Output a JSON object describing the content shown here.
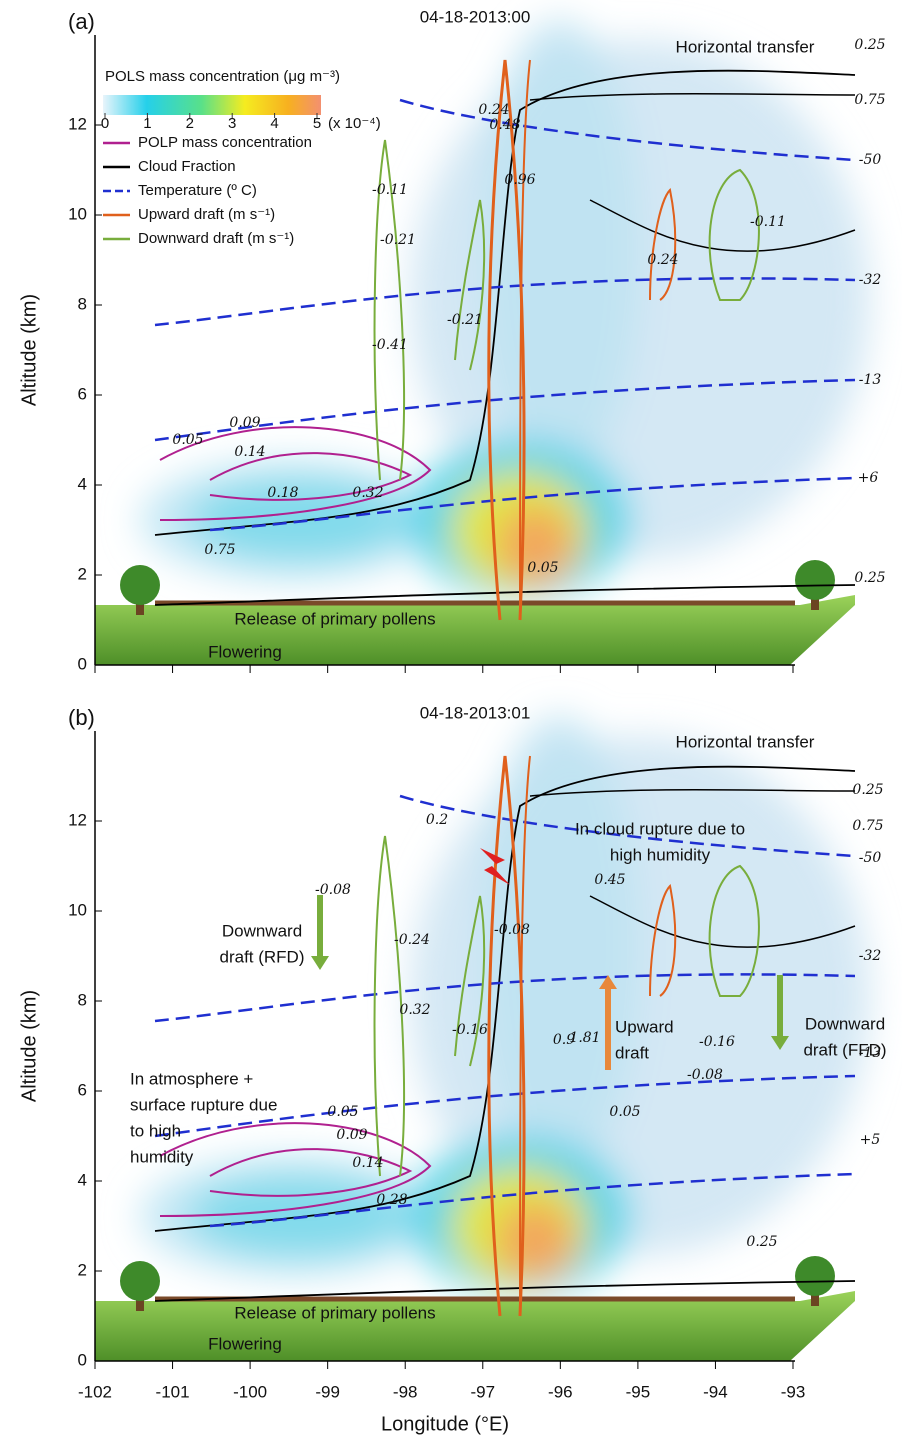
{
  "chart_data": [
    {
      "type": "contour",
      "panel_label": "(a)",
      "title": "04-18-2013:00",
      "ylabel": "Altitude (km)",
      "xlim": [
        -102,
        -92.2
      ],
      "ylim": [
        0,
        14
      ],
      "xticks": [
        -102,
        -101,
        -100,
        -99,
        -98,
        -97,
        -96,
        -95,
        -94,
        -93
      ],
      "yticks": [
        0,
        2,
        4,
        6,
        8,
        10,
        12
      ],
      "colorbar": {
        "title": "POLS mass concentration (μg m⁻³)",
        "ticks": [
          0,
          1,
          2,
          3,
          4,
          5
        ],
        "unit": "(x 10⁻⁴)"
      },
      "legend": [
        {
          "name": "POLP mass concentration",
          "color": "#b0208f"
        },
        {
          "name": "Cloud Fraction",
          "color": "#000000"
        },
        {
          "name": "Temperature (º C)",
          "color": "#1f2fd0"
        },
        {
          "name": "Upward draft (m s⁻¹)",
          "color": "#e0601c"
        },
        {
          "name": "Downward draft (m s⁻¹)",
          "color": "#78ad3c"
        }
      ],
      "annotations": [
        [
          "Horizontal transfer"
        ],
        [
          "Release of primary pollens"
        ],
        [
          "Flowering"
        ]
      ],
      "contour_labels": [
        0.25,
        0.75,
        -50,
        -32,
        -13,
        {
          "value": 6,
          "label": "+6"
        },
        0.25,
        0.75,
        0.05,
        0.09,
        0.14,
        0.18,
        0.32,
        0.24,
        0.48,
        0.96,
        -0.11,
        -0.21,
        -0.21,
        -0.41,
        0.24,
        -0.11,
        0.05
      ]
    },
    {
      "type": "contour",
      "panel_label": "(b)",
      "title": "04-18-2013:01",
      "xlabel": "Longitude (°E)",
      "ylabel": "Altitude (km)",
      "xlim": [
        -102,
        -92.2
      ],
      "ylim": [
        0,
        14
      ],
      "xticks": [
        -102,
        -101,
        -100,
        -99,
        -98,
        -97,
        -96,
        -95,
        -94,
        -93
      ],
      "yticks": [
        0,
        2,
        4,
        6,
        8,
        10,
        12
      ],
      "annotations": [
        [
          "Horizontal transfer"
        ],
        [
          "In cloud rupture due to",
          "high humidity"
        ],
        [
          "Downward",
          "draft (RFD)"
        ],
        [
          "Upward",
          "draft"
        ],
        [
          "Downward",
          "draft (FFD)"
        ],
        [
          "In atmosphere +",
          "surface rupture due",
          "to high",
          "humidity"
        ],
        [
          "Release of primary pollens"
        ],
        [
          "Flowering"
        ]
      ],
      "contour_labels": [
        0.25,
        0.75,
        -50,
        -32,
        -13,
        {
          "value": 5,
          "label": "+5"
        },
        0.2,
        -0.08,
        -0.24,
        0.32,
        -0.16,
        -0.08,
        0.45,
        1.81,
        0.9,
        -0.16,
        -0.08,
        0.05,
        0.09,
        0.14,
        0.28,
        0.05,
        0.25
      ]
    }
  ]
}
